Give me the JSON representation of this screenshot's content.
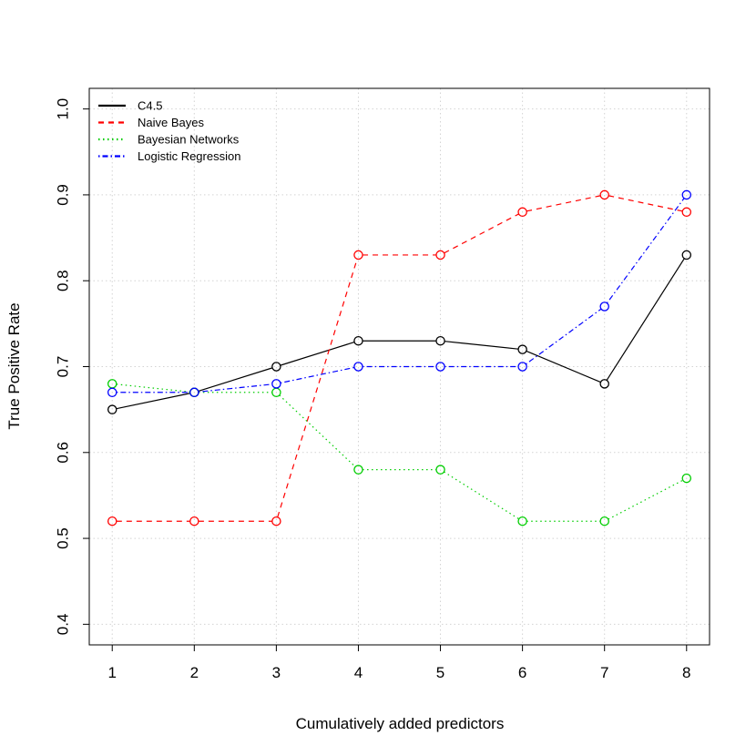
{
  "chart_data": {
    "type": "line",
    "title": "",
    "xlabel": "Cumulatively added predictors",
    "ylabel": "True Positive Rate",
    "x": [
      1,
      2,
      3,
      4,
      5,
      6,
      7,
      8
    ],
    "xlim": [
      0.72,
      8.28
    ],
    "ylim": [
      0.376,
      1.024
    ],
    "xticks": [
      1,
      2,
      3,
      4,
      5,
      6,
      7,
      8
    ],
    "yticks": [
      0.4,
      0.5,
      0.6,
      0.7,
      0.8,
      0.9,
      1.0
    ],
    "ytick_labels": [
      "0.4",
      "0.5",
      "0.6",
      "0.7",
      "0.8",
      "0.9",
      "1.0"
    ],
    "grid": true,
    "legend_position": "top-left",
    "series": [
      {
        "name": "C4.5",
        "color": "#000000",
        "dash": "solid",
        "values": [
          0.65,
          0.67,
          0.7,
          0.73,
          0.73,
          0.72,
          0.68,
          0.83
        ]
      },
      {
        "name": "Naive Bayes",
        "color": "#ff0000",
        "dash": "dashed",
        "values": [
          0.52,
          0.52,
          0.52,
          0.83,
          0.83,
          0.88,
          0.9,
          0.88
        ]
      },
      {
        "name": "Bayesian Networks",
        "color": "#00cd00",
        "dash": "dotted",
        "values": [
          0.68,
          0.67,
          0.67,
          0.58,
          0.58,
          0.52,
          0.52,
          0.57
        ]
      },
      {
        "name": "Logistic Regression",
        "color": "#0000ff",
        "dash": "dotdash",
        "values": [
          0.67,
          0.67,
          0.68,
          0.7,
          0.7,
          0.7,
          0.77,
          0.9
        ]
      }
    ]
  }
}
